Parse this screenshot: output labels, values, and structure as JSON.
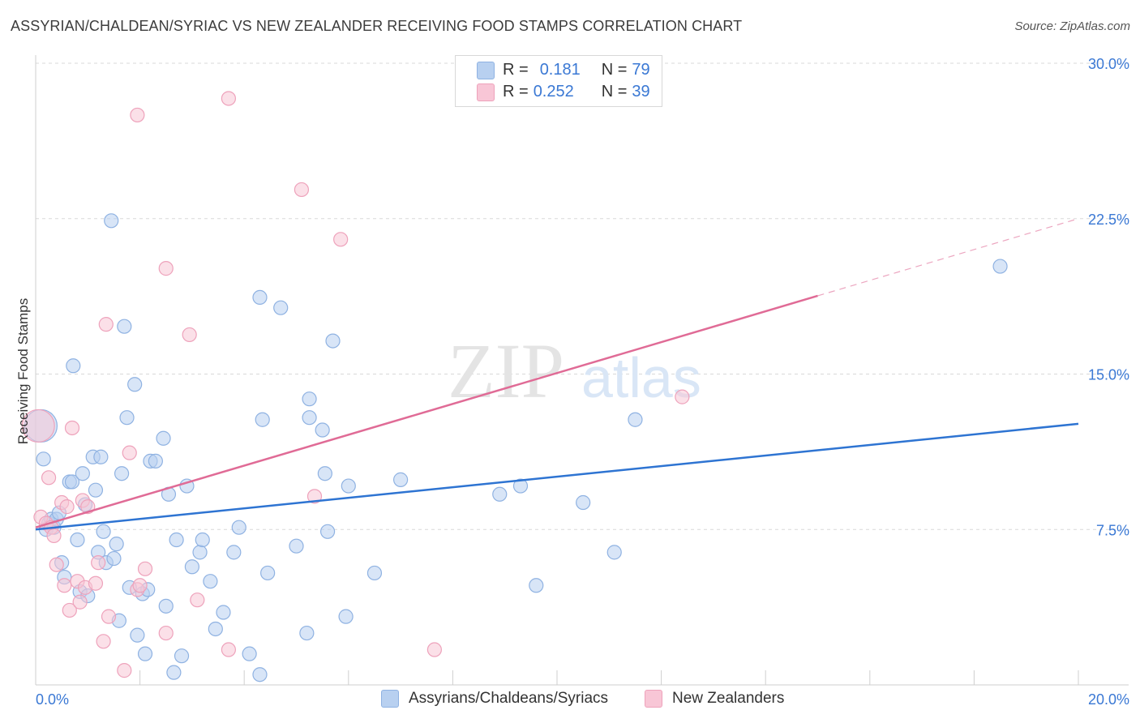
{
  "header": {
    "title": "ASSYRIAN/CHALDEAN/SYRIAC VS NEW ZEALANDER RECEIVING FOOD STAMPS CORRELATION CHART",
    "source": "Source: ZipAtlas.com"
  },
  "legend": {
    "r_label": "R =",
    "n_label": "N =",
    "series": [
      {
        "r": "0.181",
        "n": "79"
      },
      {
        "r": "0.252",
        "n": "39"
      }
    ]
  },
  "bottom_legend": {
    "items": [
      "Assyrians/Chaldeans/Syriacs",
      "New Zealanders"
    ]
  },
  "watermark": {
    "zip": "ZIP",
    "atlas": "atlas"
  },
  "colors": {
    "blue_fill": "#b8d0f0",
    "blue_stroke": "#8fb2e2",
    "blue_line": "#2e74d2",
    "pink_fill": "#f8c6d6",
    "pink_stroke": "#eea2bb",
    "pink_line": "#e06b96",
    "tick_text": "#3a78d4",
    "grid": "#d9d9d9"
  },
  "chart_data": {
    "type": "scatter",
    "title": "ASSYRIAN/CHALDEAN/SYRIAC VS NEW ZEALANDER RECEIVING FOOD STAMPS CORRELATION CHART",
    "xlabel": "",
    "ylabel": "Receiving Food Stamps",
    "xlim": [
      0,
      20
    ],
    "ylim": [
      0,
      30
    ],
    "x_tick_labels": [
      {
        "value": 0,
        "label": "0.0%"
      },
      {
        "value": 20,
        "label": "20.0%"
      }
    ],
    "y_ticks": [
      {
        "value": 7.5,
        "label": "7.5%"
      },
      {
        "value": 15,
        "label": "15.0%"
      },
      {
        "value": 22.5,
        "label": "22.5%"
      },
      {
        "value": 30,
        "label": "30.0%"
      }
    ],
    "x_minor_ticks": [
      2,
      4,
      6,
      8,
      10,
      12,
      14,
      16,
      18,
      20
    ],
    "grid": true,
    "legend_position": "top-center",
    "series": [
      {
        "name": "Assyrians/Chaldeans/Syriacs",
        "color": "blue",
        "r": 0.181,
        "n": 79,
        "trend": {
          "x": [
            0,
            20
          ],
          "y": [
            7.5,
            12.6
          ],
          "dashed_from": null
        },
        "points": [
          {
            "x": 0.1,
            "y": 12.5,
            "big": true
          },
          {
            "x": 0.15,
            "y": 10.9
          },
          {
            "x": 0.2,
            "y": 7.5
          },
          {
            "x": 0.25,
            "y": 7.8
          },
          {
            "x": 0.3,
            "y": 8.0
          },
          {
            "x": 0.35,
            "y": 7.6
          },
          {
            "x": 0.4,
            "y": 8.0
          },
          {
            "x": 0.45,
            "y": 8.3
          },
          {
            "x": 0.5,
            "y": 5.9
          },
          {
            "x": 0.55,
            "y": 5.2
          },
          {
            "x": 0.65,
            "y": 9.8
          },
          {
            "x": 0.7,
            "y": 9.8
          },
          {
            "x": 0.72,
            "y": 15.4
          },
          {
            "x": 0.8,
            "y": 7.0
          },
          {
            "x": 0.85,
            "y": 4.5
          },
          {
            "x": 0.9,
            "y": 10.2
          },
          {
            "x": 0.95,
            "y": 8.7
          },
          {
            "x": 1.0,
            "y": 4.3
          },
          {
            "x": 1.1,
            "y": 11.0
          },
          {
            "x": 1.15,
            "y": 9.4
          },
          {
            "x": 1.2,
            "y": 6.4
          },
          {
            "x": 1.25,
            "y": 11.0
          },
          {
            "x": 1.3,
            "y": 7.4
          },
          {
            "x": 1.35,
            "y": 5.9
          },
          {
            "x": 1.45,
            "y": 22.4
          },
          {
            "x": 1.5,
            "y": 6.1
          },
          {
            "x": 1.55,
            "y": 6.8
          },
          {
            "x": 1.6,
            "y": 3.1
          },
          {
            "x": 1.65,
            "y": 10.2
          },
          {
            "x": 1.7,
            "y": 17.3
          },
          {
            "x": 1.75,
            "y": 12.9
          },
          {
            "x": 1.8,
            "y": 4.7
          },
          {
            "x": 1.9,
            "y": 14.5
          },
          {
            "x": 1.95,
            "y": 2.4
          },
          {
            "x": 2.05,
            "y": 4.4
          },
          {
            "x": 2.1,
            "y": 1.5
          },
          {
            "x": 2.15,
            "y": 4.6
          },
          {
            "x": 2.2,
            "y": 10.8
          },
          {
            "x": 2.3,
            "y": 10.8
          },
          {
            "x": 2.45,
            "y": 11.9
          },
          {
            "x": 2.5,
            "y": 3.8
          },
          {
            "x": 2.55,
            "y": 9.2
          },
          {
            "x": 2.65,
            "y": 0.6
          },
          {
            "x": 2.7,
            "y": 7.0
          },
          {
            "x": 2.8,
            "y": 1.4
          },
          {
            "x": 2.9,
            "y": 9.6
          },
          {
            "x": 3.0,
            "y": 5.7
          },
          {
            "x": 3.15,
            "y": 6.4
          },
          {
            "x": 3.2,
            "y": 7.0
          },
          {
            "x": 3.35,
            "y": 5.0
          },
          {
            "x": 3.45,
            "y": 2.7
          },
          {
            "x": 3.6,
            "y": 3.5
          },
          {
            "x": 3.8,
            "y": 6.4
          },
          {
            "x": 3.9,
            "y": 7.6
          },
          {
            "x": 4.1,
            "y": 1.5
          },
          {
            "x": 4.3,
            "y": 18.7
          },
          {
            "x": 4.3,
            "y": 0.5
          },
          {
            "x": 4.35,
            "y": 12.8
          },
          {
            "x": 4.45,
            "y": 5.4
          },
          {
            "x": 4.7,
            "y": 18.2
          },
          {
            "x": 5.0,
            "y": 6.7
          },
          {
            "x": 5.2,
            "y": 2.5
          },
          {
            "x": 5.25,
            "y": 12.9
          },
          {
            "x": 5.25,
            "y": 13.8
          },
          {
            "x": 5.5,
            "y": 12.3
          },
          {
            "x": 5.55,
            "y": 10.2
          },
          {
            "x": 5.6,
            "y": 7.4
          },
          {
            "x": 5.7,
            "y": 16.6
          },
          {
            "x": 5.95,
            "y": 3.3
          },
          {
            "x": 6.0,
            "y": 9.6
          },
          {
            "x": 6.5,
            "y": 5.4
          },
          {
            "x": 7.0,
            "y": 9.9
          },
          {
            "x": 8.9,
            "y": 9.2
          },
          {
            "x": 9.3,
            "y": 9.6
          },
          {
            "x": 9.6,
            "y": 4.8
          },
          {
            "x": 10.5,
            "y": 8.8
          },
          {
            "x": 11.1,
            "y": 6.4
          },
          {
            "x": 11.5,
            "y": 12.8
          },
          {
            "x": 18.5,
            "y": 20.2
          }
        ]
      },
      {
        "name": "New Zealanders",
        "color": "pink",
        "r": 0.252,
        "n": 39,
        "trend": {
          "x": [
            0,
            20
          ],
          "y": [
            7.6,
            22.5
          ],
          "dashed_from": 15.0
        },
        "points": [
          {
            "x": 0.05,
            "y": 12.5,
            "big": true
          },
          {
            "x": 0.1,
            "y": 8.1
          },
          {
            "x": 0.2,
            "y": 7.8
          },
          {
            "x": 0.25,
            "y": 10.0
          },
          {
            "x": 0.3,
            "y": 7.6
          },
          {
            "x": 0.35,
            "y": 7.2
          },
          {
            "x": 0.4,
            "y": 5.8
          },
          {
            "x": 0.5,
            "y": 8.8
          },
          {
            "x": 0.55,
            "y": 4.8
          },
          {
            "x": 0.6,
            "y": 8.6
          },
          {
            "x": 0.65,
            "y": 3.6
          },
          {
            "x": 0.7,
            "y": 12.4
          },
          {
            "x": 0.8,
            "y": 5.0
          },
          {
            "x": 0.85,
            "y": 4.0
          },
          {
            "x": 0.9,
            "y": 8.9
          },
          {
            "x": 0.95,
            "y": 4.7
          },
          {
            "x": 1.0,
            "y": 8.6
          },
          {
            "x": 1.15,
            "y": 4.9
          },
          {
            "x": 1.2,
            "y": 5.9
          },
          {
            "x": 1.3,
            "y": 2.1
          },
          {
            "x": 1.35,
            "y": 17.4
          },
          {
            "x": 1.4,
            "y": 3.3
          },
          {
            "x": 1.7,
            "y": 0.7
          },
          {
            "x": 1.8,
            "y": 11.2
          },
          {
            "x": 1.95,
            "y": 4.6
          },
          {
            "x": 1.95,
            "y": 27.5
          },
          {
            "x": 2.0,
            "y": 4.8
          },
          {
            "x": 2.1,
            "y": 5.6
          },
          {
            "x": 2.5,
            "y": 2.5
          },
          {
            "x": 2.5,
            "y": 20.1
          },
          {
            "x": 2.95,
            "y": 16.9
          },
          {
            "x": 3.1,
            "y": 4.1
          },
          {
            "x": 3.7,
            "y": 1.7
          },
          {
            "x": 3.7,
            "y": 28.3
          },
          {
            "x": 5.1,
            "y": 23.9
          },
          {
            "x": 5.35,
            "y": 9.1
          },
          {
            "x": 5.85,
            "y": 21.5
          },
          {
            "x": 7.65,
            "y": 1.7
          },
          {
            "x": 12.4,
            "y": 13.9
          }
        ]
      }
    ]
  }
}
